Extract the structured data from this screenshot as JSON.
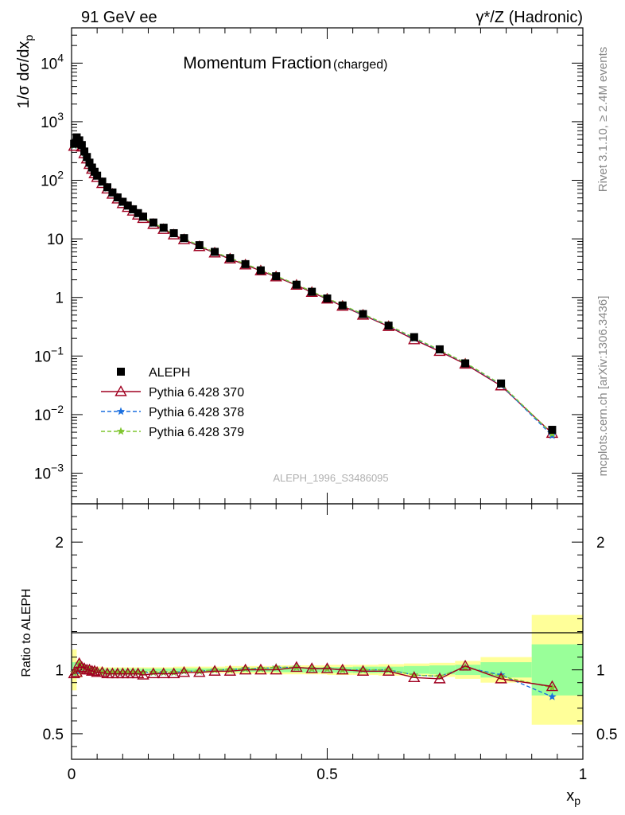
{
  "header": {
    "left": "91 GeV ee",
    "right": "γ*/Z (Hadronic)"
  },
  "side_text": {
    "rivet": "Rivet 3.1.10, ≥ 2.4M events",
    "mcplots": "mcplots.cern.ch [arXiv:1306.3436]"
  },
  "watermark": "ALEPH_1996_S3486095",
  "chart_data": [
    {
      "type": "scatter",
      "title": "Momentum Fraction",
      "title_suffix": "(charged)",
      "ylabel": "1/σ dσ/dx_p",
      "yscale": "log",
      "xlim": [
        0,
        1
      ],
      "ylim": [
        0.0003,
        40000
      ],
      "yticks": [
        "10^-3",
        "10^-2",
        "10^-1",
        "1",
        "10",
        "10^2",
        "10^3",
        "10^4"
      ],
      "legend_position": "lower-left",
      "x": [
        0.005,
        0.01,
        0.015,
        0.02,
        0.025,
        0.03,
        0.035,
        0.04,
        0.045,
        0.05,
        0.06,
        0.07,
        0.08,
        0.09,
        0.1,
        0.11,
        0.12,
        0.13,
        0.14,
        0.16,
        0.18,
        0.2,
        0.22,
        0.25,
        0.28,
        0.31,
        0.34,
        0.37,
        0.4,
        0.44,
        0.47,
        0.5,
        0.53,
        0.57,
        0.62,
        0.67,
        0.72,
        0.77,
        0.84,
        0.94
      ],
      "series": [
        {
          "name": "ALEPH",
          "color": "#000000",
          "marker": "square",
          "values": [
            420,
            540,
            480,
            400,
            310,
            250,
            200,
            165,
            140,
            120,
            95,
            76,
            62,
            51,
            43,
            37,
            32,
            27.5,
            24,
            19,
            15.5,
            12.5,
            10.3,
            7.8,
            6.0,
            4.7,
            3.7,
            2.9,
            2.3,
            1.65,
            1.25,
            0.96,
            0.73,
            0.52,
            0.33,
            0.21,
            0.13,
            0.075,
            0.034,
            0.0055
          ]
        },
        {
          "name": "Pythia 6.428 370",
          "color": "#a00020",
          "marker": "triangle-open",
          "dash": "solid",
          "values": [
            380,
            480,
            440,
            370,
            285,
            232,
            187,
            155,
            130,
            112,
            88,
            71,
            58,
            48,
            40,
            34.5,
            29.8,
            25.5,
            22.3,
            17.7,
            14.5,
            11.7,
            9.7,
            7.4,
            5.75,
            4.55,
            3.6,
            2.85,
            2.25,
            1.62,
            1.22,
            0.94,
            0.71,
            0.5,
            0.32,
            0.19,
            0.12,
            0.073,
            0.031,
            0.0048
          ]
        },
        {
          "name": "Pythia 6.428 378",
          "color": "#1a6fdf",
          "marker": "star",
          "dash": "dashed",
          "values": [
            390,
            500,
            460,
            385,
            295,
            240,
            193,
            160,
            135,
            116,
            91,
            73,
            60,
            49.5,
            41.5,
            35.7,
            30.8,
            26.4,
            23.1,
            18.3,
            15.0,
            12.1,
            10.0,
            7.6,
            5.9,
            4.65,
            3.7,
            2.93,
            2.3,
            1.66,
            1.25,
            0.96,
            0.73,
            0.51,
            0.33,
            0.2,
            0.125,
            0.076,
            0.032,
            0.0044
          ]
        },
        {
          "name": "Pythia 6.428 379",
          "color": "#7fc52e",
          "marker": "star",
          "dash": "dashed",
          "values": [
            395,
            505,
            465,
            390,
            298,
            242,
            195,
            161,
            136,
            117,
            92,
            73.5,
            60.5,
            50,
            42,
            36,
            31,
            26.6,
            23.3,
            18.5,
            15.1,
            12.2,
            10.1,
            7.7,
            5.95,
            4.7,
            3.72,
            2.95,
            2.32,
            1.67,
            1.26,
            0.97,
            0.74,
            0.52,
            0.335,
            0.205,
            0.127,
            0.077,
            0.033,
            0.0047
          ]
        }
      ]
    },
    {
      "type": "line",
      "ylabel": "Ratio to ALEPH",
      "xlabel": "x_p",
      "xlim": [
        0,
        1
      ],
      "ylim": [
        0.3,
        2.3
      ],
      "xticks": [
        "0",
        "0.5",
        "1"
      ],
      "yticks": [
        "0.5",
        "1",
        "2"
      ],
      "band_x_edges": [
        0,
        0.01,
        0.02,
        0.04,
        0.06,
        0.1,
        0.15,
        0.2,
        0.25,
        0.3,
        0.35,
        0.4,
        0.45,
        0.5,
        0.55,
        0.6,
        0.65,
        0.7,
        0.75,
        0.8,
        0.9,
        1.0
      ],
      "band_stat_syst": [
        0.16,
        0.06,
        0.03,
        0.025,
        0.02,
        0.02,
        0.02,
        0.025,
        0.025,
        0.03,
        0.03,
        0.035,
        0.035,
        0.04,
        0.04,
        0.045,
        0.05,
        0.055,
        0.07,
        0.1,
        0.43
      ],
      "band_stat": [
        0.06,
        0.03,
        0.015,
        0.012,
        0.01,
        0.01,
        0.01,
        0.012,
        0.012,
        0.015,
        0.015,
        0.018,
        0.02,
        0.022,
        0.025,
        0.025,
        0.03,
        0.035,
        0.04,
        0.06,
        0.2
      ],
      "x": [
        0.005,
        0.01,
        0.015,
        0.02,
        0.025,
        0.03,
        0.035,
        0.04,
        0.045,
        0.05,
        0.06,
        0.07,
        0.08,
        0.09,
        0.1,
        0.11,
        0.12,
        0.13,
        0.14,
        0.16,
        0.18,
        0.2,
        0.22,
        0.25,
        0.28,
        0.31,
        0.34,
        0.37,
        0.4,
        0.44,
        0.47,
        0.5,
        0.53,
        0.57,
        0.62,
        0.67,
        0.72,
        0.77,
        0.84,
        0.94
      ],
      "series": [
        {
          "name": "Pythia 6.428 370",
          "color": "#a00020",
          "marker": "triangle-open",
          "dash": "solid",
          "values": [
            0.97,
            0.98,
            1.05,
            1.02,
            1.01,
            1.0,
            1.0,
            0.99,
            0.99,
            0.98,
            0.98,
            0.97,
            0.97,
            0.97,
            0.97,
            0.97,
            0.97,
            0.97,
            0.96,
            0.97,
            0.97,
            0.97,
            0.98,
            0.98,
            0.99,
            0.99,
            1.0,
            1.0,
            1.0,
            1.02,
            1.01,
            1.01,
            1.0,
            0.99,
            0.99,
            0.94,
            0.93,
            1.03,
            0.93,
            0.87
          ]
        },
        {
          "name": "Pythia 6.428 378",
          "color": "#1a6fdf",
          "marker": "star",
          "dash": "dashed",
          "values": [
            0.98,
            0.99,
            1.04,
            1.03,
            1.02,
            1.01,
            1.0,
            1.0,
            0.99,
            0.99,
            0.98,
            0.98,
            0.98,
            0.98,
            0.98,
            0.98,
            0.98,
            0.98,
            0.98,
            0.98,
            0.98,
            0.98,
            0.99,
            0.99,
            1.0,
            1.0,
            1.01,
            1.01,
            1.02,
            1.02,
            1.01,
            1.01,
            1.0,
            1.0,
            1.0,
            0.96,
            0.95,
            1.02,
            0.96,
            0.79
          ]
        },
        {
          "name": "Pythia 6.428 379",
          "color": "#7fc52e",
          "marker": "star",
          "dash": "dashed",
          "values": [
            0.98,
            1.0,
            1.05,
            1.03,
            1.02,
            1.01,
            1.0,
            1.0,
            0.99,
            0.99,
            0.98,
            0.98,
            0.98,
            0.98,
            0.98,
            0.98,
            0.98,
            0.98,
            0.98,
            0.98,
            0.98,
            0.98,
            0.99,
            0.99,
            1.0,
            1.0,
            1.01,
            1.01,
            1.02,
            1.02,
            1.01,
            1.01,
            1.0,
            1.0,
            1.0,
            0.96,
            0.95,
            1.02,
            0.95,
            0.86
          ]
        }
      ]
    }
  ]
}
